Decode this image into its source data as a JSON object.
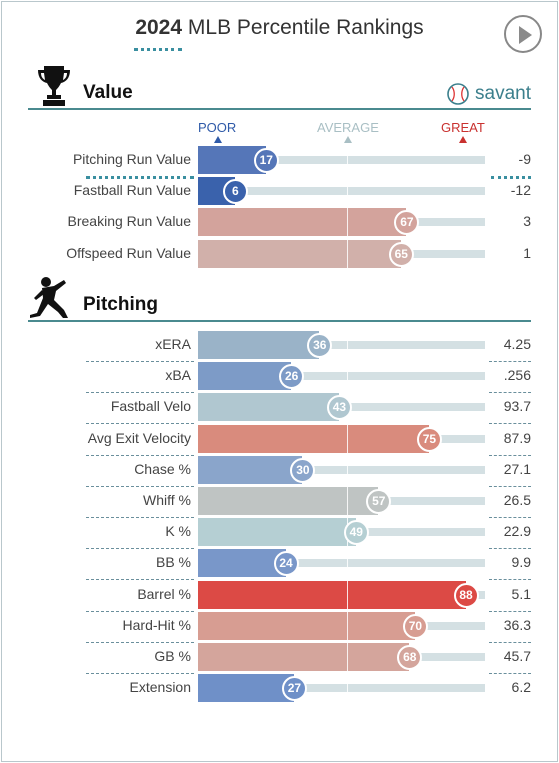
{
  "header": {
    "title_year": "2024",
    "title_rest": "MLB Percentile Rankings"
  },
  "legend": {
    "poor": "POOR",
    "average": "AVERAGE",
    "great": "GREAT",
    "poor_color": "#2f5aa8",
    "average_color": "#a9bfc4",
    "great_color": "#c9312f"
  },
  "brand": "savant",
  "sections": [
    {
      "title": "Value",
      "icon": "trophy-icon",
      "rows": [
        {
          "label": "Pitching Run Value",
          "percentile": 17,
          "value": "-9",
          "color": "#5576b8",
          "highlight": true
        },
        {
          "label": "Fastball Run Value",
          "percentile": 6,
          "value": "-12",
          "color": "#3a62ac"
        },
        {
          "label": "Breaking Run Value",
          "percentile": 67,
          "value": "3",
          "color": "#d3a39c"
        },
        {
          "label": "Offspeed Run Value",
          "percentile": 65,
          "value": "1",
          "color": "#d1b0aa"
        }
      ]
    },
    {
      "title": "Pitching",
      "icon": "pitcher-icon",
      "rows": [
        {
          "label": "xERA",
          "percentile": 36,
          "value": "4.25",
          "color": "#9ab3c8"
        },
        {
          "label": "xBA",
          "percentile": 26,
          "value": ".256",
          "color": "#7d9bc7"
        },
        {
          "label": "Fastball Velo",
          "percentile": 43,
          "value": "93.7",
          "color": "#b0c7d0"
        },
        {
          "label": "Avg Exit Velocity",
          "percentile": 75,
          "value": "87.9",
          "color": "#d98b7d"
        },
        {
          "label": "Chase %",
          "percentile": 30,
          "value": "27.1",
          "color": "#8aa5cb"
        },
        {
          "label": "Whiff %",
          "percentile": 57,
          "value": "26.5",
          "color": "#bfc4c3"
        },
        {
          "label": "K %",
          "percentile": 49,
          "value": "22.9",
          "color": "#b5cfd3"
        },
        {
          "label": "BB %",
          "percentile": 24,
          "value": "9.9",
          "color": "#7997c9"
        },
        {
          "label": "Barrel %",
          "percentile": 88,
          "value": "5.1",
          "color": "#dc4a45"
        },
        {
          "label": "Hard-Hit %",
          "percentile": 70,
          "value": "36.3",
          "color": "#d79d92"
        },
        {
          "label": "GB %",
          "percentile": 68,
          "value": "45.7",
          "color": "#d4a59c"
        },
        {
          "label": "Extension",
          "percentile": 27,
          "value": "6.2",
          "color": "#6f90c8"
        }
      ]
    }
  ]
}
